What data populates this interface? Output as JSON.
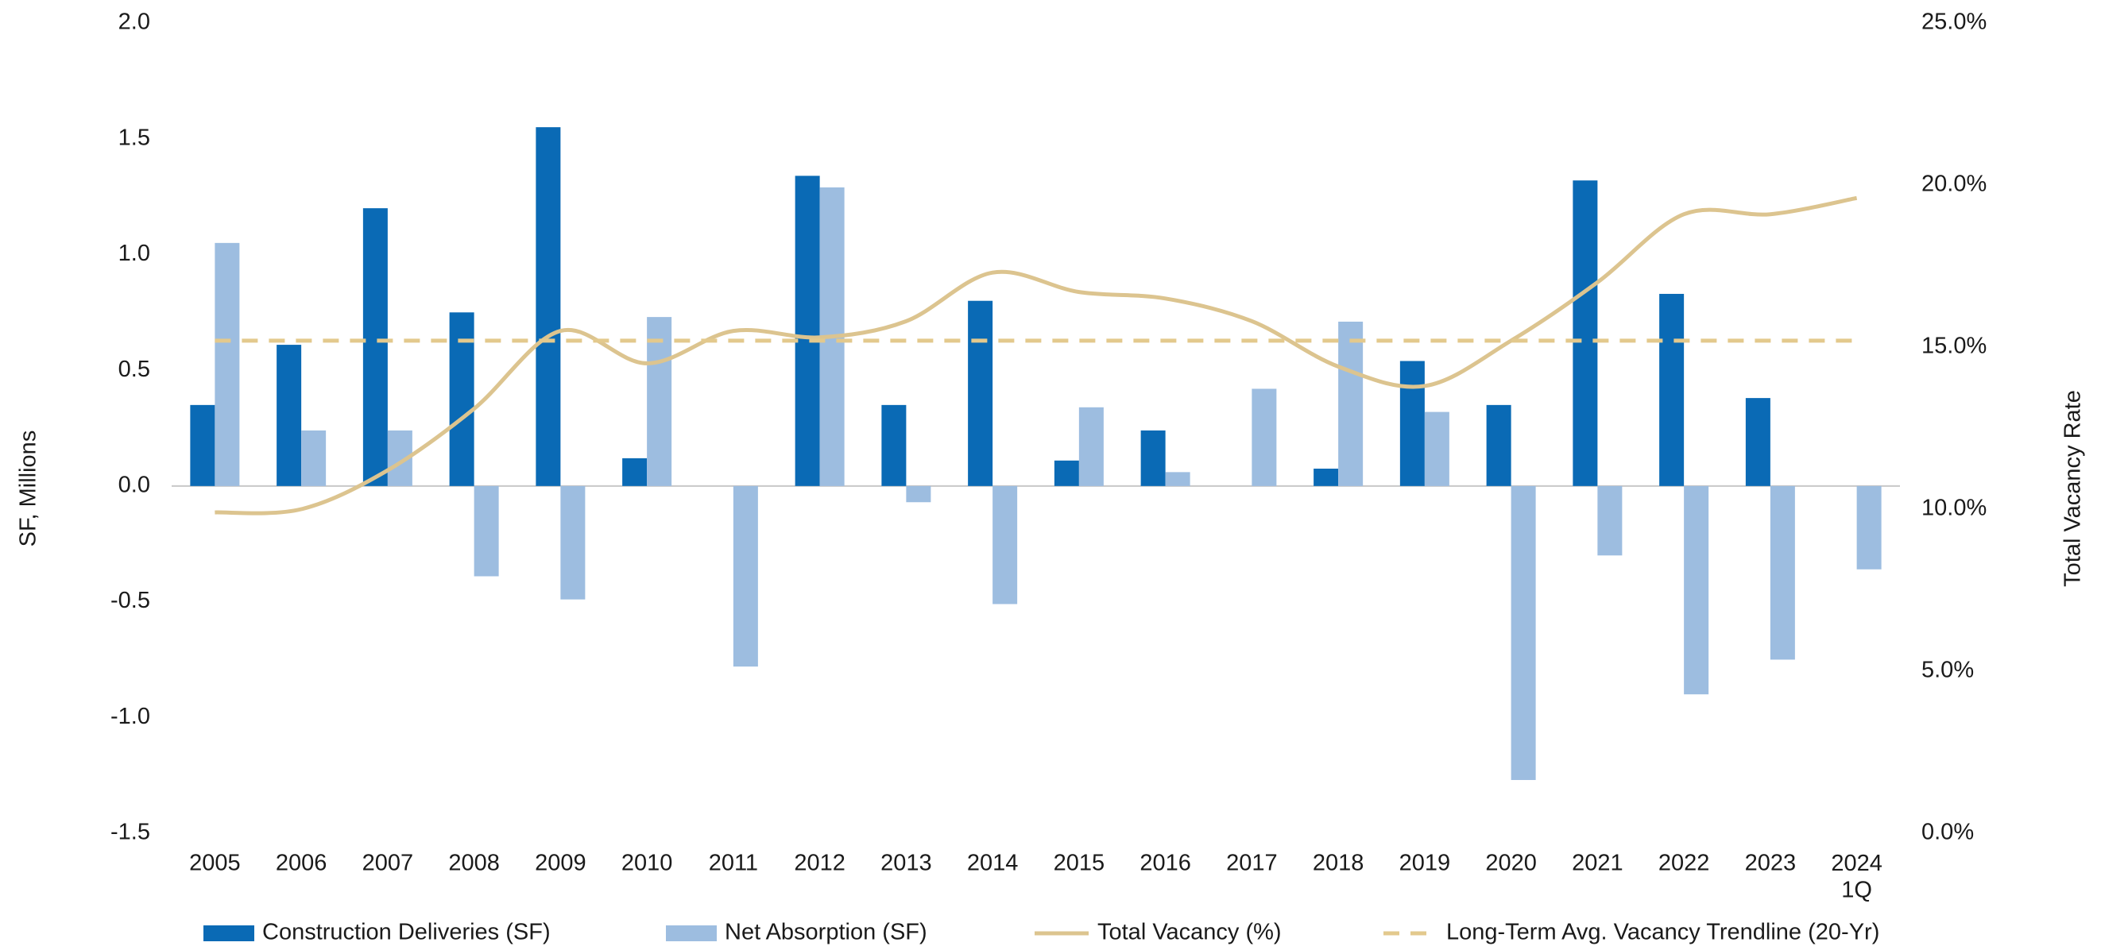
{
  "chart_data": {
    "type": "bar",
    "categories": [
      "2005",
      "2006",
      "2007",
      "2008",
      "2009",
      "2010",
      "2011",
      "2012",
      "2013",
      "2014",
      "2015",
      "2016",
      "2017",
      "2018",
      "2019",
      "2020",
      "2021",
      "2022",
      "2023",
      "2024\n1Q"
    ],
    "ylabel": "SF, Millions",
    "y2label": "Total Vacancy Rate",
    "ylim": [
      -1.5,
      2.0
    ],
    "yticks": [
      {
        "value": 2.0,
        "label": "2.0"
      },
      {
        "value": 1.5,
        "label": "1.5"
      },
      {
        "value": 1.0,
        "label": "1.0"
      },
      {
        "value": 0.5,
        "label": "0.5"
      },
      {
        "value": 0,
        "label": "0.0"
      },
      {
        "value": -0.5,
        "label": "-0.5"
      },
      {
        "value": -1.0,
        "label": "-1.0"
      },
      {
        "value": -1.5,
        "label": "-1.5"
      }
    ],
    "y2lim": [
      0,
      25
    ],
    "y2ticks": [
      {
        "value": 25,
        "label": "25.0%"
      },
      {
        "value": 20,
        "label": "20.0%"
      },
      {
        "value": 15,
        "label": "15.0%"
      },
      {
        "value": 10,
        "label": "10.0%"
      },
      {
        "value": 5,
        "label": "5.0%"
      },
      {
        "value": 0,
        "label": "0.0%"
      }
    ],
    "grid": false,
    "legend": "bottom",
    "series": [
      {
        "name": "Construction Deliveries (SF)",
        "kind": "bar",
        "color": "#0a6ab5",
        "values": [
          0.35,
          0.61,
          1.2,
          0.75,
          1.55,
          0.12,
          0,
          1.34,
          0.35,
          0.8,
          0.11,
          0.24,
          0,
          0.075,
          0.54,
          0.35,
          1.32,
          0.83,
          0.38,
          0
        ]
      },
      {
        "name": "Net Absorption (SF)",
        "kind": "bar",
        "color": "#9dbde0",
        "values": [
          1.05,
          0.24,
          0.24,
          -0.39,
          -0.49,
          0.73,
          -0.78,
          1.29,
          -0.07,
          -0.51,
          0.34,
          0.06,
          0.42,
          0.71,
          0.32,
          -1.27,
          -0.3,
          -0.9,
          -0.75,
          -0.36
        ]
      },
      {
        "name": "Total Vacancy (%)",
        "kind": "line",
        "axis": "y2",
        "color": "#dcc48f",
        "values": [
          9.9,
          10.0,
          11.2,
          13.1,
          15.5,
          14.5,
          15.5,
          15.3,
          15.8,
          17.3,
          16.7,
          16.5,
          15.8,
          14.4,
          13.8,
          15.2,
          17.0,
          19.1,
          19.1,
          19.6
        ]
      },
      {
        "name": "Long-Term Avg. Vacancy Trendline (20-Yr)",
        "kind": "line",
        "dashed": true,
        "axis": "y2",
        "color": "#e3c98d",
        "values": [
          15.2,
          15.2,
          15.2,
          15.2,
          15.2,
          15.2,
          15.2,
          15.2,
          15.2,
          15.2,
          15.2,
          15.2,
          15.2,
          15.2,
          15.2,
          15.2,
          15.2,
          15.2,
          15.2,
          15.2
        ]
      }
    ]
  }
}
